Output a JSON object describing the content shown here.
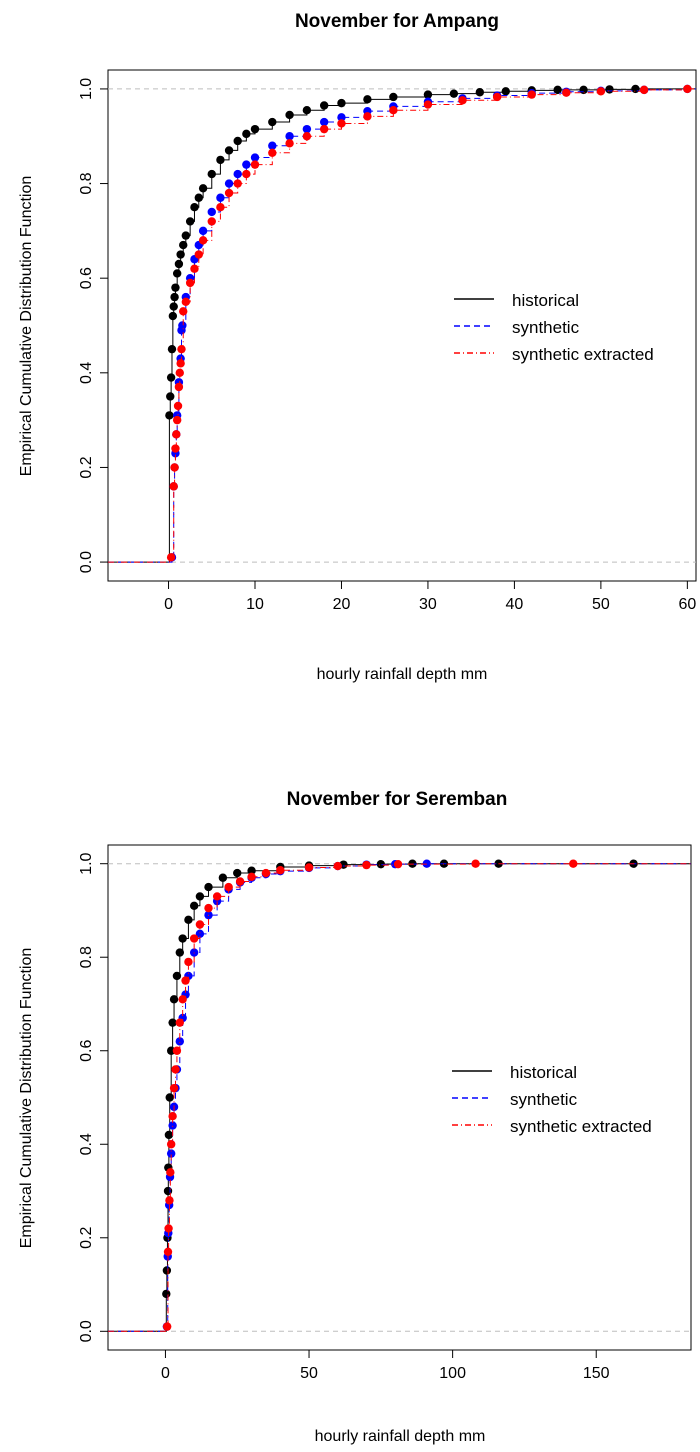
{
  "colors": {
    "historical": "#000000",
    "synthetic": "#0000ff",
    "synthetic_extracted": "#ff0000",
    "reference_line": "#bebebe"
  },
  "chart_data": [
    {
      "type": "scatter",
      "title": "November for Ampang",
      "xlabel": "hourly rainfall depth mm",
      "ylabel": "Empirical Cumulative Distribution Function",
      "xlim": [
        -7,
        61
      ],
      "ylim": [
        -0.04,
        1.04
      ],
      "xticks": [
        0,
        10,
        20,
        30,
        40,
        50,
        60
      ],
      "yticks": [
        0.0,
        0.2,
        0.4,
        0.6,
        0.8,
        1.0
      ],
      "reference_lines_y": [
        0,
        1
      ],
      "grid": false,
      "legend_position": "right-center",
      "series": [
        {
          "name": "historical",
          "color": "#000000",
          "line_style": "solid",
          "points": [
            [
              0.1,
              0.31
            ],
            [
              0.2,
              0.35
            ],
            [
              0.3,
              0.39
            ],
            [
              0.4,
              0.45
            ],
            [
              0.5,
              0.52
            ],
            [
              0.6,
              0.54
            ],
            [
              0.7,
              0.56
            ],
            [
              0.8,
              0.58
            ],
            [
              1.0,
              0.61
            ],
            [
              1.2,
              0.63
            ],
            [
              1.4,
              0.65
            ],
            [
              1.7,
              0.67
            ],
            [
              2.0,
              0.69
            ],
            [
              2.5,
              0.72
            ],
            [
              3.0,
              0.75
            ],
            [
              3.5,
              0.77
            ],
            [
              4.0,
              0.79
            ],
            [
              5.0,
              0.82
            ],
            [
              6.0,
              0.85
            ],
            [
              7.0,
              0.87
            ],
            [
              8.0,
              0.89
            ],
            [
              9.0,
              0.905
            ],
            [
              10.0,
              0.915
            ],
            [
              12.0,
              0.93
            ],
            [
              14.0,
              0.945
            ],
            [
              16.0,
              0.955
            ],
            [
              18.0,
              0.965
            ],
            [
              20.0,
              0.97
            ],
            [
              23.0,
              0.978
            ],
            [
              26.0,
              0.983
            ],
            [
              30.0,
              0.988
            ],
            [
              33.0,
              0.99
            ],
            [
              36.0,
              0.993
            ],
            [
              39.0,
              0.995
            ],
            [
              42.0,
              0.997
            ],
            [
              45.0,
              0.998
            ],
            [
              48.0,
              0.998
            ],
            [
              51.0,
              0.999
            ],
            [
              54.0,
              1.0
            ]
          ]
        },
        {
          "name": "synthetic",
          "color": "#0000ff",
          "line_style": "dashed",
          "points": [
            [
              0.4,
              0.01
            ],
            [
              0.6,
              0.16
            ],
            [
              0.7,
              0.2
            ],
            [
              0.8,
              0.23
            ],
            [
              0.9,
              0.27
            ],
            [
              1.0,
              0.31
            ],
            [
              1.2,
              0.38
            ],
            [
              1.4,
              0.43
            ],
            [
              1.5,
              0.49
            ],
            [
              1.6,
              0.5
            ],
            [
              2.0,
              0.56
            ],
            [
              2.5,
              0.6
            ],
            [
              3.0,
              0.64
            ],
            [
              3.5,
              0.67
            ],
            [
              4.0,
              0.7
            ],
            [
              5.0,
              0.74
            ],
            [
              6.0,
              0.77
            ],
            [
              7.0,
              0.8
            ],
            [
              8.0,
              0.82
            ],
            [
              9.0,
              0.84
            ],
            [
              10.0,
              0.855
            ],
            [
              12.0,
              0.88
            ],
            [
              14.0,
              0.9
            ],
            [
              16.0,
              0.915
            ],
            [
              18.0,
              0.93
            ],
            [
              20.0,
              0.94
            ],
            [
              23.0,
              0.953
            ],
            [
              26.0,
              0.963
            ],
            [
              30.0,
              0.973
            ],
            [
              34.0,
              0.98
            ],
            [
              38.0,
              0.986
            ],
            [
              42.0,
              0.991
            ],
            [
              46.0,
              0.994
            ],
            [
              50.0,
              0.996
            ],
            [
              55.0,
              0.998
            ],
            [
              60.0,
              1.0
            ]
          ]
        },
        {
          "name": "synthetic extracted",
          "color": "#ff0000",
          "line_style": "dashdot",
          "points": [
            [
              0.3,
              0.01
            ],
            [
              0.6,
              0.16
            ],
            [
              0.7,
              0.2
            ],
            [
              0.8,
              0.24
            ],
            [
              0.9,
              0.27
            ],
            [
              1.0,
              0.3
            ],
            [
              1.1,
              0.33
            ],
            [
              1.2,
              0.37
            ],
            [
              1.3,
              0.4
            ],
            [
              1.4,
              0.42
            ],
            [
              1.5,
              0.45
            ],
            [
              1.7,
              0.53
            ],
            [
              2.0,
              0.55
            ],
            [
              2.5,
              0.59
            ],
            [
              3.0,
              0.62
            ],
            [
              3.5,
              0.65
            ],
            [
              4.0,
              0.68
            ],
            [
              5.0,
              0.72
            ],
            [
              6.0,
              0.75
            ],
            [
              7.0,
              0.78
            ],
            [
              8.0,
              0.8
            ],
            [
              9.0,
              0.82
            ],
            [
              10.0,
              0.84
            ],
            [
              12.0,
              0.865
            ],
            [
              14.0,
              0.885
            ],
            [
              16.0,
              0.9
            ],
            [
              18.0,
              0.915
            ],
            [
              20.0,
              0.927
            ],
            [
              23.0,
              0.942
            ],
            [
              26.0,
              0.955
            ],
            [
              30.0,
              0.967
            ],
            [
              34.0,
              0.976
            ],
            [
              38.0,
              0.983
            ],
            [
              42.0,
              0.988
            ],
            [
              46.0,
              0.992
            ],
            [
              50.0,
              0.995
            ],
            [
              55.0,
              0.998
            ],
            [
              60.0,
              1.0
            ]
          ]
        }
      ]
    },
    {
      "type": "scatter",
      "title": "November for Seremban",
      "xlabel": "hourly rainfall depth mm",
      "ylabel": "Empirical Cumulative Distribution Function",
      "xlim": [
        -20,
        183
      ],
      "ylim": [
        -0.04,
        1.04
      ],
      "xticks": [
        0,
        50,
        100,
        150
      ],
      "yticks": [
        0.0,
        0.2,
        0.4,
        0.6,
        0.8,
        1.0
      ],
      "reference_lines_y": [
        0,
        1
      ],
      "grid": false,
      "legend_position": "right-center",
      "series": [
        {
          "name": "historical",
          "color": "#000000",
          "line_style": "solid",
          "points": [
            [
              0.3,
              0.08
            ],
            [
              0.5,
              0.13
            ],
            [
              0.7,
              0.2
            ],
            [
              0.9,
              0.3
            ],
            [
              1.0,
              0.35
            ],
            [
              1.2,
              0.42
            ],
            [
              1.5,
              0.5
            ],
            [
              2.0,
              0.6
            ],
            [
              2.5,
              0.66
            ],
            [
              3.0,
              0.71
            ],
            [
              4.0,
              0.76
            ],
            [
              5.0,
              0.81
            ],
            [
              6.0,
              0.84
            ],
            [
              8.0,
              0.88
            ],
            [
              10.0,
              0.91
            ],
            [
              12.0,
              0.93
            ],
            [
              15.0,
              0.95
            ],
            [
              20.0,
              0.97
            ],
            [
              25.0,
              0.98
            ],
            [
              30.0,
              0.985
            ],
            [
              40.0,
              0.993
            ],
            [
              50.0,
              0.996
            ],
            [
              62.0,
              0.998
            ],
            [
              75.0,
              0.999
            ],
            [
              86.0,
              1.0
            ],
            [
              97.0,
              1.0
            ],
            [
              116.0,
              1.0
            ],
            [
              163.0,
              1.0
            ]
          ]
        },
        {
          "name": "synthetic",
          "color": "#0000ff",
          "line_style": "dashed",
          "points": [
            [
              0.5,
              0.01
            ],
            [
              0.8,
              0.16
            ],
            [
              1.0,
              0.21
            ],
            [
              1.3,
              0.27
            ],
            [
              1.6,
              0.33
            ],
            [
              2.0,
              0.38
            ],
            [
              2.5,
              0.44
            ],
            [
              3.0,
              0.48
            ],
            [
              3.5,
              0.52
            ],
            [
              4.0,
              0.56
            ],
            [
              5.0,
              0.62
            ],
            [
              6.0,
              0.67
            ],
            [
              7.0,
              0.72
            ],
            [
              8.0,
              0.76
            ],
            [
              10.0,
              0.81
            ],
            [
              12.0,
              0.85
            ],
            [
              15.0,
              0.89
            ],
            [
              18.0,
              0.92
            ],
            [
              22.0,
              0.945
            ],
            [
              26.0,
              0.96
            ],
            [
              30.0,
              0.97
            ],
            [
              35.0,
              0.978
            ],
            [
              40.0,
              0.984
            ],
            [
              50.0,
              0.991
            ],
            [
              60.0,
              0.995
            ],
            [
              70.0,
              0.998
            ],
            [
              80.0,
              0.999
            ],
            [
              91.0,
              1.0
            ]
          ]
        },
        {
          "name": "synthetic extracted",
          "color": "#ff0000",
          "line_style": "dashdot",
          "points": [
            [
              0.6,
              0.01
            ],
            [
              0.9,
              0.17
            ],
            [
              1.1,
              0.22
            ],
            [
              1.4,
              0.28
            ],
            [
              1.7,
              0.34
            ],
            [
              2.0,
              0.4
            ],
            [
              2.5,
              0.46
            ],
            [
              3.0,
              0.52
            ],
            [
              3.5,
              0.56
            ],
            [
              4.0,
              0.6
            ],
            [
              5.0,
              0.66
            ],
            [
              6.0,
              0.71
            ],
            [
              7.0,
              0.75
            ],
            [
              8.0,
              0.79
            ],
            [
              10.0,
              0.84
            ],
            [
              12.0,
              0.87
            ],
            [
              15.0,
              0.905
            ],
            [
              18.0,
              0.93
            ],
            [
              22.0,
              0.95
            ],
            [
              26.0,
              0.962
            ],
            [
              30.0,
              0.972
            ],
            [
              35.0,
              0.98
            ],
            [
              40.0,
              0.986
            ],
            [
              50.0,
              0.992
            ],
            [
              60.0,
              0.995
            ],
            [
              70.0,
              0.997
            ],
            [
              81.0,
              0.999
            ],
            [
              108.0,
              1.0
            ],
            [
              142.0,
              1.0
            ]
          ]
        }
      ]
    }
  ]
}
